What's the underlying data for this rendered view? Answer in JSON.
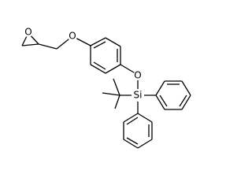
{
  "atoms": [
    {
      "label": "O"
    },
    {
      "label": "O"
    },
    {
      "label": "O"
    },
    {
      "label": "Si"
    }
  ]
}
